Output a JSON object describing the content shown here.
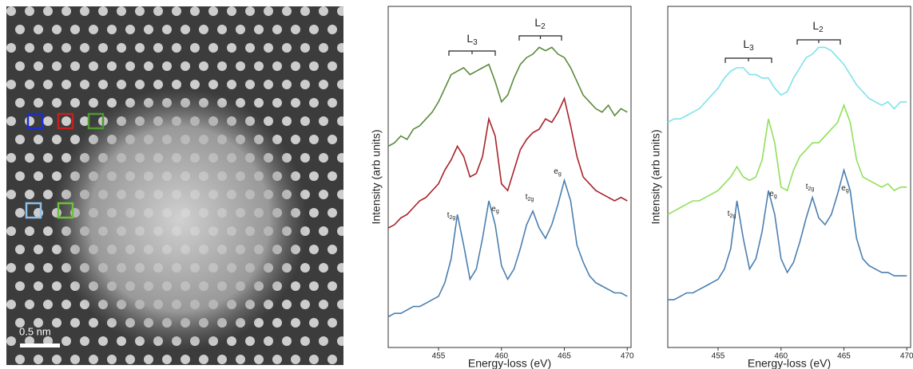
{
  "image": {
    "scale_label": "0.5 nm"
  },
  "chart_data": [
    {
      "type": "line",
      "xlabel": "Energy-loss (eV)",
      "ylabel": "Intensity (arb units)",
      "x": [
        451,
        451.5,
        452,
        452.5,
        453,
        453.5,
        454,
        454.5,
        455,
        455.5,
        456,
        456.5,
        457,
        457.5,
        458,
        458.5,
        459,
        459.5,
        460,
        460.5,
        461,
        461.5,
        462,
        462.5,
        463,
        463.5,
        464,
        464.5,
        465,
        465.5,
        466,
        466.5,
        467,
        467.5,
        468,
        468.5,
        469,
        469.5,
        470
      ],
      "xlim": [
        451,
        470.3
      ],
      "xticks": [
        455,
        460,
        465,
        470
      ],
      "ylim": [
        0,
        10
      ],
      "series": [
        {
          "color": "#5a8a3a",
          "values": [
            5.9,
            6.0,
            6.2,
            6.1,
            6.4,
            6.5,
            6.7,
            6.9,
            7.2,
            7.6,
            8.0,
            8.1,
            8.2,
            8.0,
            8.1,
            8.2,
            8.3,
            7.8,
            7.2,
            7.4,
            7.9,
            8.3,
            8.5,
            8.6,
            8.8,
            8.7,
            8.8,
            8.6,
            8.5,
            8.2,
            7.8,
            7.4,
            7.2,
            7.0,
            6.9,
            7.1,
            6.8,
            7.0,
            6.9
          ]
        },
        {
          "color": "#a8232a",
          "values": [
            3.5,
            3.6,
            3.8,
            3.9,
            4.1,
            4.3,
            4.4,
            4.6,
            4.8,
            5.2,
            5.5,
            5.9,
            5.6,
            5.0,
            5.1,
            5.6,
            6.7,
            6.2,
            4.8,
            4.6,
            5.2,
            5.8,
            6.1,
            6.3,
            6.4,
            6.7,
            6.6,
            6.9,
            7.3,
            6.5,
            5.6,
            5.0,
            4.8,
            4.6,
            4.5,
            4.4,
            4.3,
            4.4,
            4.3
          ]
        },
        {
          "color": "#4a7fb0",
          "values": [
            0.9,
            1.0,
            1.0,
            1.1,
            1.2,
            1.2,
            1.3,
            1.4,
            1.5,
            1.9,
            2.6,
            3.9,
            3.0,
            2.0,
            2.3,
            3.2,
            4.3,
            3.6,
            2.4,
            2.0,
            2.3,
            2.9,
            3.6,
            4.0,
            3.5,
            3.2,
            3.6,
            4.2,
            4.9,
            4.3,
            3.0,
            2.5,
            2.1,
            1.9,
            1.8,
            1.7,
            1.6,
            1.6,
            1.5
          ]
        }
      ],
      "annotations": [
        {
          "text": "L",
          "sub": "3"
        },
        {
          "text": "L",
          "sub": "2"
        },
        {
          "text": "t",
          "sub": "2g"
        },
        {
          "text": "e",
          "sub": "g"
        },
        {
          "text": "t",
          "sub": "2g"
        },
        {
          "text": "e",
          "sub": "g"
        }
      ]
    },
    {
      "type": "line",
      "xlabel": "Energy-loss (eV)",
      "ylabel": "Intensity (arb units)",
      "x": [
        451,
        451.5,
        452,
        452.5,
        453,
        453.5,
        454,
        454.5,
        455,
        455.5,
        456,
        456.5,
        457,
        457.5,
        458,
        458.5,
        459,
        459.5,
        460,
        460.5,
        461,
        461.5,
        462,
        462.5,
        463,
        463.5,
        464,
        464.5,
        465,
        465.5,
        466,
        466.5,
        467,
        467.5,
        468,
        468.5,
        469,
        469.5,
        470
      ],
      "xlim": [
        451,
        470.3
      ],
      "xticks": [
        455,
        460,
        465,
        470
      ],
      "ylim": [
        0,
        10
      ],
      "series": [
        {
          "color": "#7ee3ea",
          "values": [
            6.6,
            6.7,
            6.7,
            6.8,
            6.9,
            7.0,
            7.2,
            7.4,
            7.6,
            7.9,
            8.1,
            8.2,
            8.2,
            8.0,
            8.0,
            7.9,
            7.9,
            7.6,
            7.4,
            7.5,
            7.9,
            8.2,
            8.5,
            8.6,
            8.8,
            8.8,
            8.7,
            8.5,
            8.3,
            8.0,
            7.7,
            7.5,
            7.3,
            7.2,
            7.1,
            7.2,
            7.0,
            7.2,
            7.2
          ]
        },
        {
          "color": "#8fe05a",
          "values": [
            3.9,
            4.0,
            4.1,
            4.2,
            4.3,
            4.3,
            4.4,
            4.5,
            4.6,
            4.8,
            5.0,
            5.3,
            5.0,
            4.9,
            5.0,
            5.5,
            6.7,
            6.0,
            4.7,
            4.6,
            5.2,
            5.6,
            5.8,
            6.0,
            6.0,
            6.2,
            6.4,
            6.6,
            7.1,
            6.6,
            5.5,
            5.0,
            4.9,
            4.8,
            4.7,
            4.8,
            4.6,
            4.7,
            4.7
          ]
        },
        {
          "color": "#4a7fb0",
          "values": [
            1.4,
            1.4,
            1.5,
            1.6,
            1.6,
            1.7,
            1.8,
            1.9,
            2.0,
            2.3,
            2.9,
            4.3,
            3.2,
            2.3,
            2.6,
            3.4,
            4.6,
            3.9,
            2.6,
            2.2,
            2.5,
            3.1,
            3.8,
            4.4,
            3.8,
            3.6,
            3.9,
            4.5,
            5.2,
            4.6,
            3.2,
            2.6,
            2.4,
            2.3,
            2.2,
            2.2,
            2.1,
            2.1,
            2.1
          ]
        }
      ],
      "annotations": [
        {
          "text": "L",
          "sub": "3"
        },
        {
          "text": "L",
          "sub": "2"
        },
        {
          "text": "t",
          "sub": "2g"
        },
        {
          "text": "e",
          "sub": "g"
        },
        {
          "text": "t",
          "sub": "2g"
        },
        {
          "text": "e",
          "sub": "g"
        }
      ]
    }
  ]
}
